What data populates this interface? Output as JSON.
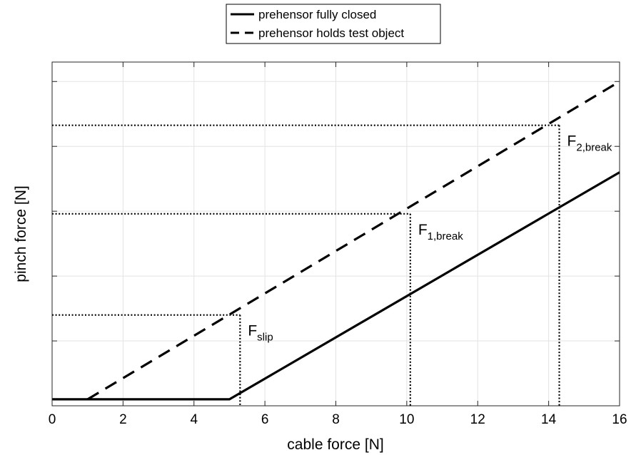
{
  "chart_data": {
    "type": "line",
    "xlabel": "cable force [N]",
    "ylabel": "pinch force [N]",
    "xlim": [
      0,
      16
    ],
    "ylim": [
      0,
      10.6
    ],
    "xticks": [
      "0",
      "2",
      "4",
      "6",
      "8",
      "10",
      "12",
      "14",
      "16"
    ],
    "yticks_unlabeled": [
      0,
      2,
      4,
      6,
      8,
      10
    ],
    "grid": true,
    "legend_position": "top-center",
    "series": [
      {
        "name": "prehensor fully closed",
        "style": "solid",
        "color": "#000000",
        "points": [
          [
            0,
            0.2
          ],
          [
            5.0,
            0.2
          ],
          [
            16,
            7.2
          ]
        ]
      },
      {
        "name": "prehensor holds test object",
        "style": "dashed",
        "color": "#000000",
        "points": [
          [
            1.0,
            0.2
          ],
          [
            16,
            10.0
          ]
        ]
      }
    ],
    "reference_lines": [
      {
        "label_main": "F",
        "label_sub": "slip",
        "x": 5.3,
        "y": 2.8
      },
      {
        "label_main": "F",
        "label_sub": "1,break",
        "x": 10.1,
        "y": 5.92
      },
      {
        "label_main": "F",
        "label_sub": "2,break",
        "x": 14.3,
        "y": 8.65
      }
    ]
  }
}
